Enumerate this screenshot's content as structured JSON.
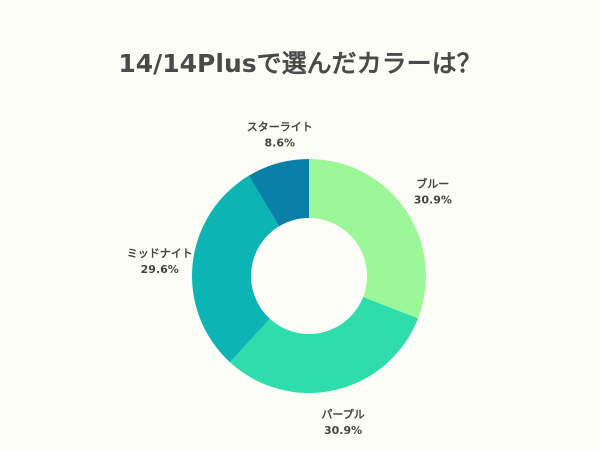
{
  "chart_data": {
    "type": "pie",
    "donut": true,
    "title": "14/14Plusで選んだカラーは？",
    "start": "top",
    "direction": "clockwise",
    "slices": [
      {
        "label": "ブルー",
        "value": 30.9,
        "display": "30.9%",
        "color": "#9bf797"
      },
      {
        "label": "パープル",
        "value": 30.9,
        "display": "30.9%",
        "color": "#2fdcac"
      },
      {
        "label": "ミッドナイト",
        "value": 29.6,
        "display": "29.6%",
        "color": "#0cb5b4"
      },
      {
        "label": "スターライト",
        "value": 8.6,
        "display": "8.6%",
        "color": "#0a80a8"
      }
    ]
  }
}
